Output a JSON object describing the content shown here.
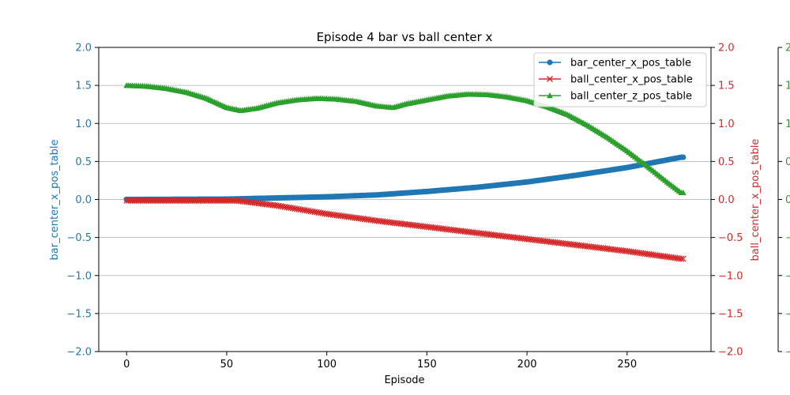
{
  "chart_data": {
    "type": "line",
    "title": "Episode 4 bar vs ball center x",
    "xlabel": "Episode",
    "xlim": [
      -13.9,
      291.9
    ],
    "x_ticks": [
      0,
      50,
      100,
      150,
      200,
      250
    ],
    "y_ticks": [
      -2.0,
      -1.5,
      -1.0,
      -0.5,
      0.0,
      0.5,
      1.0,
      1.5,
      2.0
    ],
    "y_tick_labels": [
      "−2.0",
      "−1.5",
      "−1.0",
      "−0.5",
      "0.0",
      "0.5",
      "1.0",
      "1.5",
      "2.0"
    ],
    "grid": "horizontal",
    "legend_position": "top-right",
    "n_points": 279,
    "axes": [
      {
        "id": "left",
        "label": "bar_center_x_pos_table",
        "ylim": [
          -2,
          2
        ],
        "color": "#1f77b4"
      },
      {
        "id": "right",
        "label": "ball_center_x_pos_table",
        "ylim": [
          -2,
          2
        ],
        "color": "#d62728"
      },
      {
        "id": "far-right",
        "label": "",
        "ylim": [
          -2,
          2
        ],
        "color": "#2ca02c"
      }
    ],
    "series": [
      {
        "name": "bar_center_x_pos_table",
        "axis": "left",
        "color": "#1f77b4",
        "marker": "circle",
        "keypoints": [
          [
            0,
            0.0
          ],
          [
            50,
            0.005
          ],
          [
            75,
            0.02
          ],
          [
            100,
            0.035
          ],
          [
            125,
            0.06
          ],
          [
            150,
            0.105
          ],
          [
            175,
            0.16
          ],
          [
            200,
            0.23
          ],
          [
            225,
            0.32
          ],
          [
            250,
            0.42
          ],
          [
            277,
            0.555
          ]
        ]
      },
      {
        "name": "ball_center_x_pos_table",
        "axis": "right",
        "color": "#d62728",
        "marker": "x",
        "keypoints": [
          [
            0,
            -0.015
          ],
          [
            55,
            -0.015
          ],
          [
            75,
            -0.08
          ],
          [
            100,
            -0.19
          ],
          [
            125,
            -0.28
          ],
          [
            150,
            -0.36
          ],
          [
            175,
            -0.44
          ],
          [
            200,
            -0.52
          ],
          [
            225,
            -0.6
          ],
          [
            250,
            -0.68
          ],
          [
            277,
            -0.78
          ]
        ]
      },
      {
        "name": "ball_center_z_pos_table",
        "axis": "far-right",
        "color": "#2ca02c",
        "marker": "triangle",
        "keypoints": [
          [
            0,
            1.5
          ],
          [
            10,
            1.49
          ],
          [
            20,
            1.46
          ],
          [
            30,
            1.41
          ],
          [
            40,
            1.33
          ],
          [
            50,
            1.21
          ],
          [
            57,
            1.17
          ],
          [
            65,
            1.2
          ],
          [
            75,
            1.27
          ],
          [
            85,
            1.31
          ],
          [
            95,
            1.33
          ],
          [
            105,
            1.32
          ],
          [
            115,
            1.29
          ],
          [
            125,
            1.23
          ],
          [
            133,
            1.21
          ],
          [
            140,
            1.26
          ],
          [
            150,
            1.31
          ],
          [
            160,
            1.36
          ],
          [
            170,
            1.385
          ],
          [
            180,
            1.38
          ],
          [
            190,
            1.35
          ],
          [
            200,
            1.3
          ],
          [
            210,
            1.22
          ],
          [
            220,
            1.12
          ],
          [
            230,
            0.98
          ],
          [
            240,
            0.82
          ],
          [
            250,
            0.64
          ],
          [
            260,
            0.44
          ],
          [
            270,
            0.23
          ],
          [
            277,
            0.09
          ]
        ]
      }
    ]
  }
}
